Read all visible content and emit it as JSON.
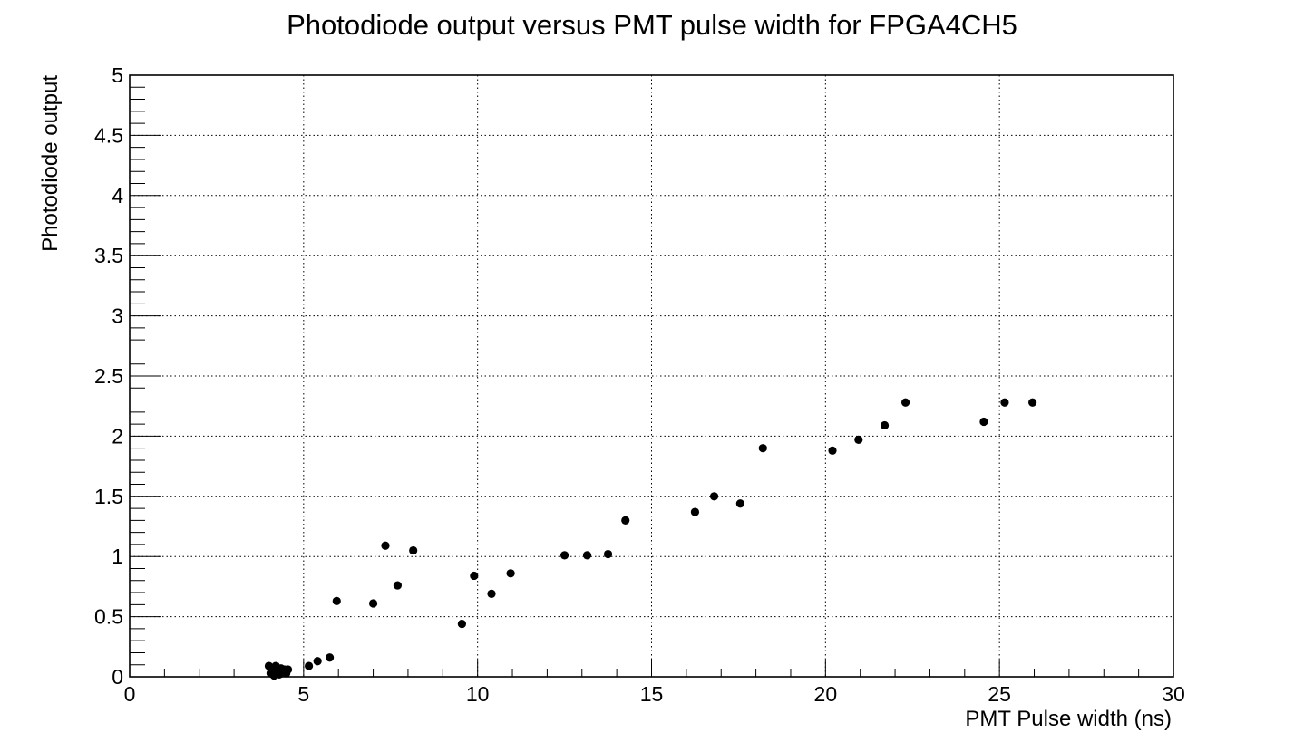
{
  "chart_data": {
    "type": "scatter",
    "title": "Photodiode output versus PMT pulse width for FPGA4CH5",
    "xlabel": "PMT Pulse width (ns)",
    "ylabel": "Photodiode output",
    "xlim": [
      0,
      30
    ],
    "ylim": [
      0,
      5
    ],
    "x_major_ticks": [
      0,
      5,
      10,
      15,
      20,
      25,
      30
    ],
    "x_tick_labels": [
      "0",
      "5",
      "10",
      "15",
      "20",
      "25",
      "30"
    ],
    "y_major_ticks": [
      0,
      0.5,
      1,
      1.5,
      2,
      2.5,
      3,
      3.5,
      4,
      4.5,
      5
    ],
    "y_tick_labels": [
      "0",
      "0.5",
      "1",
      "1.5",
      "2",
      "2.5",
      "3",
      "3.5",
      "4",
      "4.5",
      "5"
    ],
    "x_minor_step": 1,
    "y_minor_step": 0.1,
    "grid": true,
    "marker_color": "#000000",
    "points": [
      {
        "x": 4.0,
        "y": 0.09
      },
      {
        "x": 4.05,
        "y": 0.03
      },
      {
        "x": 4.1,
        "y": 0.07
      },
      {
        "x": 4.15,
        "y": 0.01
      },
      {
        "x": 4.2,
        "y": 0.09
      },
      {
        "x": 4.25,
        "y": 0.05
      },
      {
        "x": 4.3,
        "y": 0.02
      },
      {
        "x": 4.35,
        "y": 0.07
      },
      {
        "x": 4.4,
        "y": 0.04
      },
      {
        "x": 4.45,
        "y": 0.06
      },
      {
        "x": 4.5,
        "y": 0.03
      },
      {
        "x": 4.55,
        "y": 0.06
      },
      {
        "x": 5.15,
        "y": 0.09
      },
      {
        "x": 5.4,
        "y": 0.13
      },
      {
        "x": 5.75,
        "y": 0.16
      },
      {
        "x": 5.95,
        "y": 0.63
      },
      {
        "x": 7.0,
        "y": 0.61
      },
      {
        "x": 7.35,
        "y": 1.09
      },
      {
        "x": 7.7,
        "y": 0.76
      },
      {
        "x": 8.15,
        "y": 1.05
      },
      {
        "x": 9.55,
        "y": 0.44
      },
      {
        "x": 9.9,
        "y": 0.84
      },
      {
        "x": 10.4,
        "y": 0.69
      },
      {
        "x": 10.95,
        "y": 0.86
      },
      {
        "x": 12.5,
        "y": 1.01
      },
      {
        "x": 13.15,
        "y": 1.01
      },
      {
        "x": 13.75,
        "y": 1.02
      },
      {
        "x": 14.25,
        "y": 1.3
      },
      {
        "x": 16.25,
        "y": 1.37
      },
      {
        "x": 16.8,
        "y": 1.5
      },
      {
        "x": 17.55,
        "y": 1.44
      },
      {
        "x": 18.2,
        "y": 1.9
      },
      {
        "x": 20.2,
        "y": 1.88
      },
      {
        "x": 20.95,
        "y": 1.97
      },
      {
        "x": 21.7,
        "y": 2.09
      },
      {
        "x": 22.3,
        "y": 2.28
      },
      {
        "x": 24.55,
        "y": 2.12
      },
      {
        "x": 25.15,
        "y": 2.28
      },
      {
        "x": 25.95,
        "y": 2.28
      }
    ]
  }
}
